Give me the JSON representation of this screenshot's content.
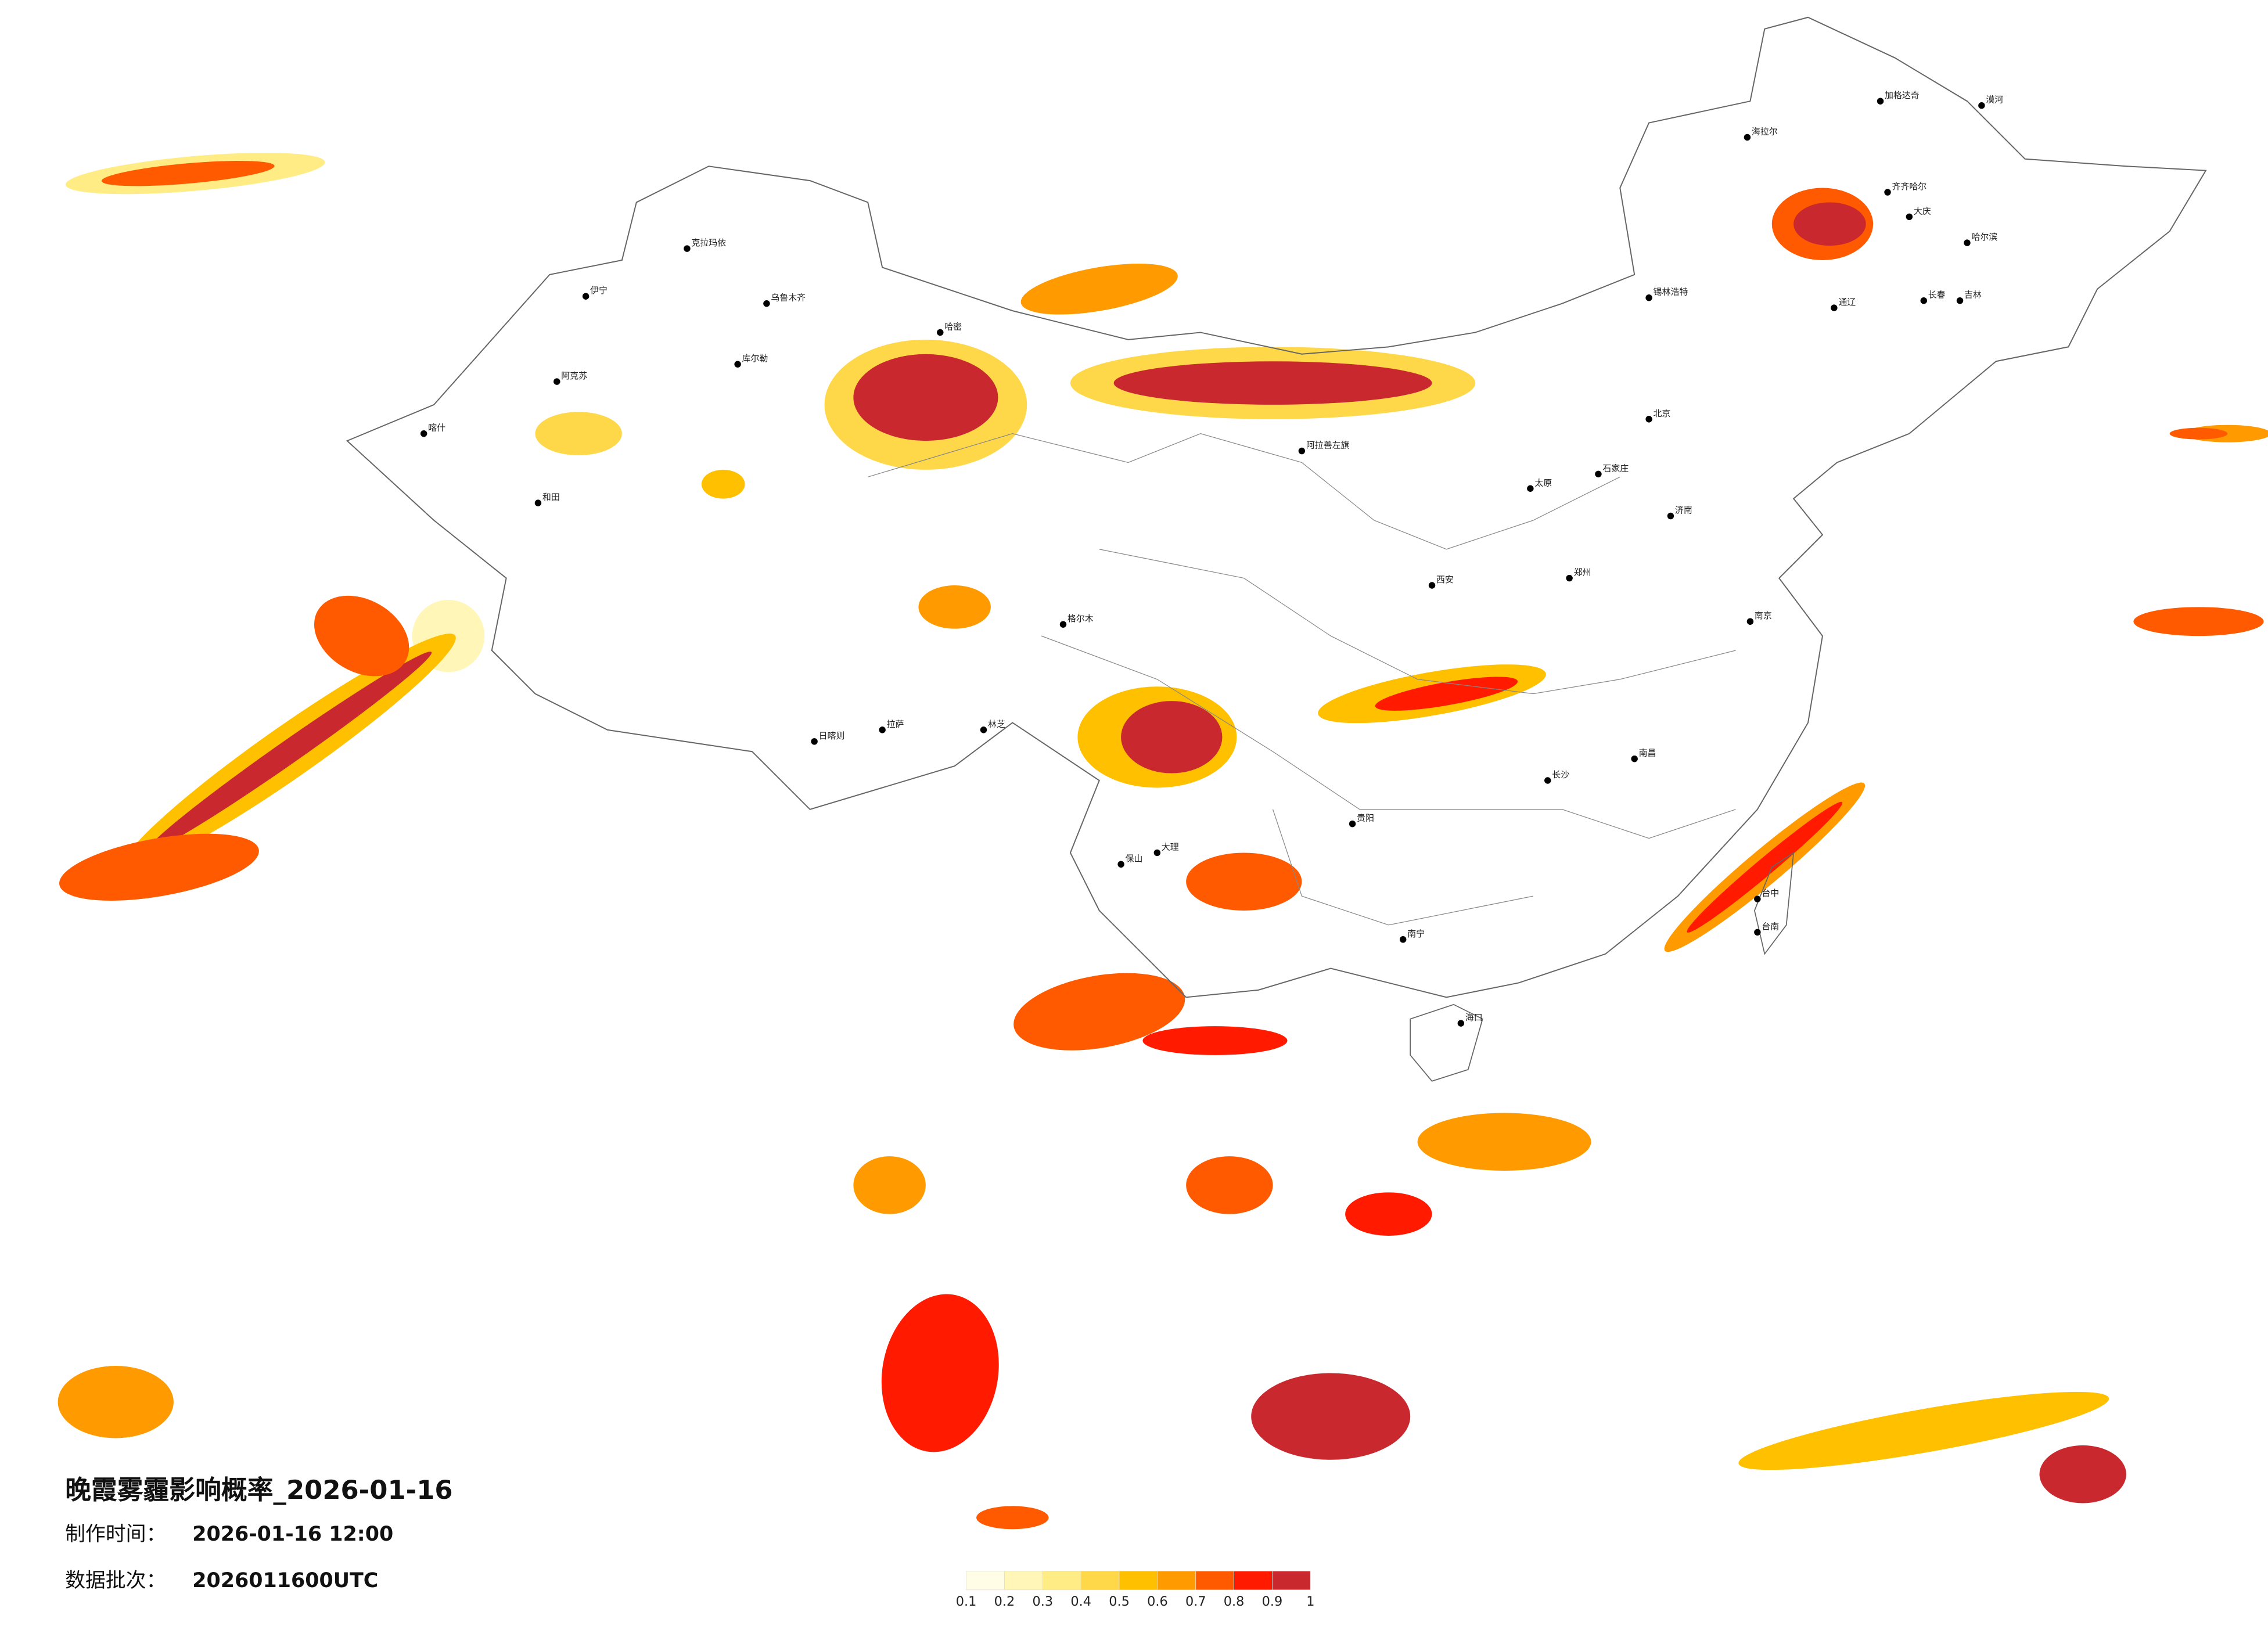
{
  "title": "晚霞雾霾影响概率_2026-01-16",
  "made_label": "制作时间：",
  "made_value": "2026-01-16 12:00",
  "batch_label": "数据批次：",
  "batch_value": "2026011600UTC",
  "legend": {
    "colors": [
      "#fffde6",
      "#fff6b8",
      "#ffec85",
      "#ffd84a",
      "#ffc000",
      "#ff9a00",
      "#ff5a00",
      "#ff1a00",
      "#c8282e"
    ],
    "ticks": [
      0.1,
      0.2,
      0.3,
      0.4,
      0.5,
      0.6,
      0.7,
      0.8,
      0.9,
      1
    ]
  },
  "cities": [
    "漠河",
    "加格达奇",
    "海拉尔",
    "齐齐哈尔",
    "大庆",
    "哈尔滨",
    "长春",
    "吉林",
    "通辽",
    "锡林浩特",
    "北京",
    "石家庄",
    "太原",
    "济南",
    "郑州",
    "西安",
    "南京",
    "长沙",
    "南昌",
    "贵阳",
    "南宁",
    "海口",
    "台中",
    "台南",
    "大理",
    "保山",
    "拉萨",
    "林芝",
    "日喀则",
    "格尔木",
    "哈密",
    "库尔勒",
    "乌鲁木齐",
    "克拉玛依",
    "伊宁",
    "阿克苏",
    "喀什",
    "和田",
    "阿拉善左旗"
  ]
}
